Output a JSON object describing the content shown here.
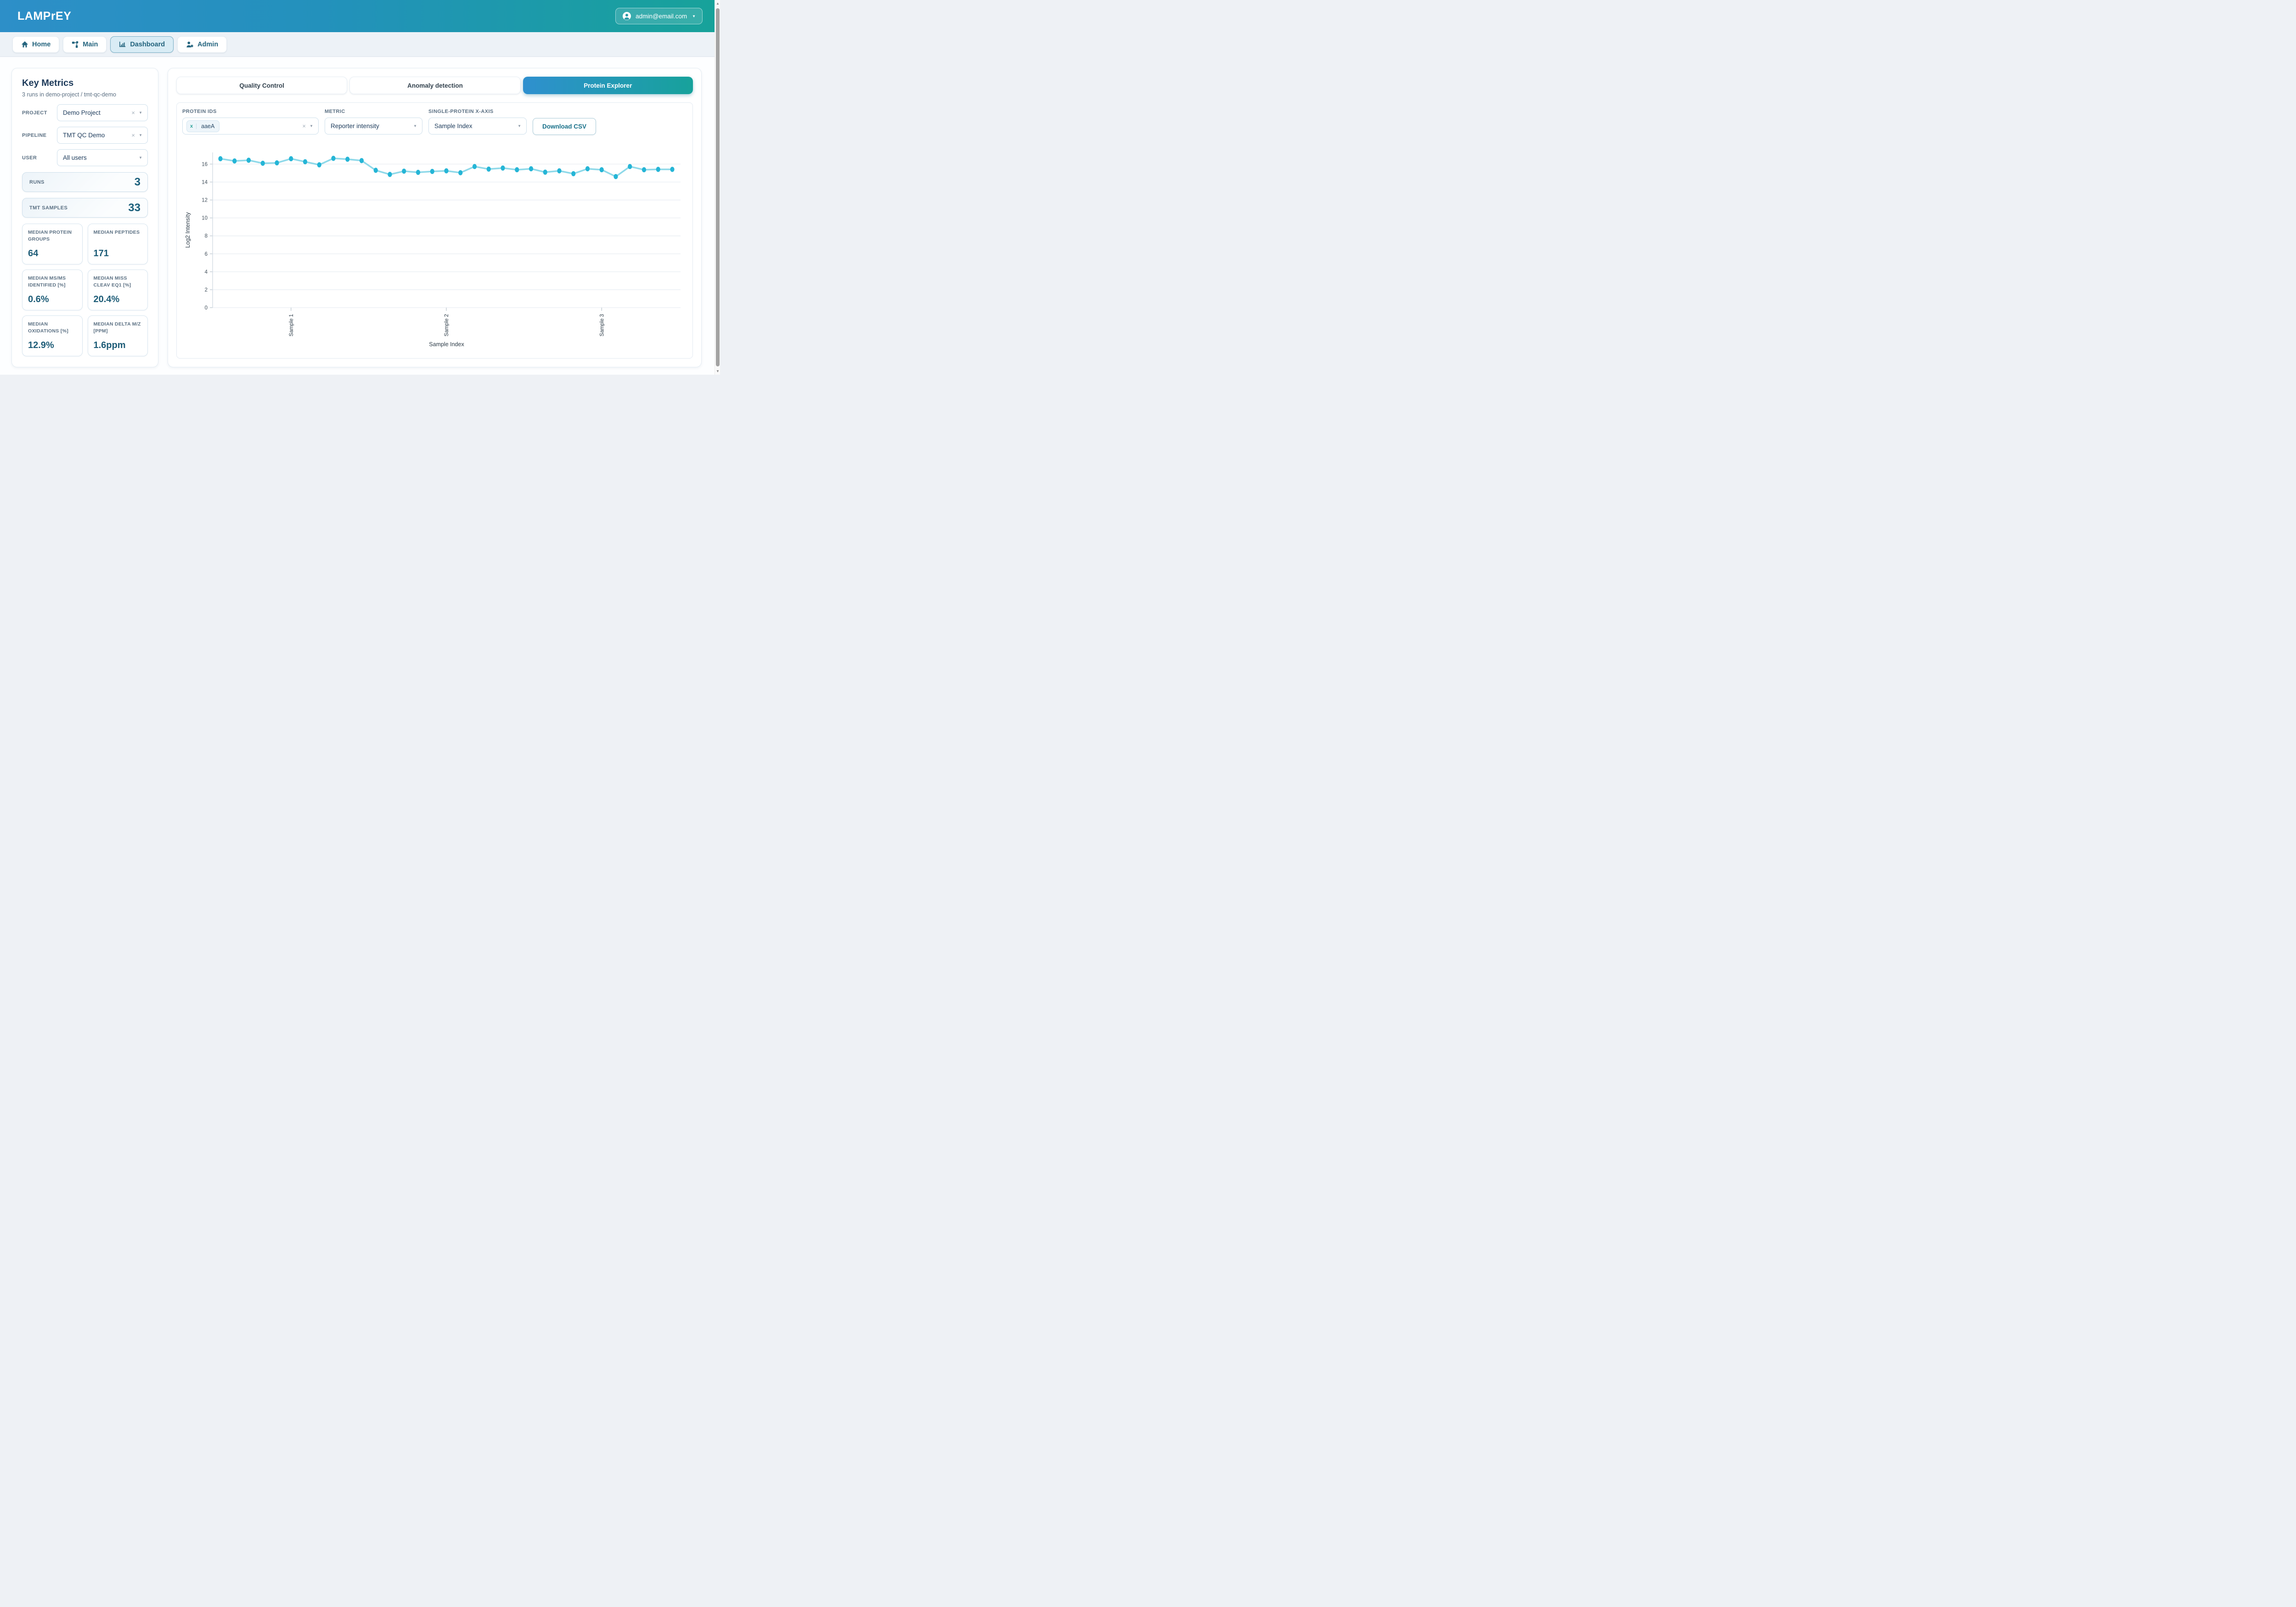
{
  "header": {
    "app_title": "LAMPrEY",
    "user_email": "admin@email.com",
    "caret": "▼"
  },
  "nav": {
    "items": [
      {
        "label": "Home",
        "active": false
      },
      {
        "label": "Main",
        "active": false
      },
      {
        "label": "Dashboard",
        "active": true
      },
      {
        "label": "Admin",
        "active": false
      }
    ]
  },
  "sidebar": {
    "title": "Key Metrics",
    "subtitle": "3 runs in demo-project / tmt-qc-demo",
    "filters": [
      {
        "label": "PROJECT",
        "value": "Demo Project",
        "clear": "×",
        "caret": "▼"
      },
      {
        "label": "PIPELINE",
        "value": "TMT QC Demo",
        "clear": "×",
        "caret": "▼"
      },
      {
        "label": "USER",
        "value": "All users",
        "clear": "",
        "caret": "▼"
      }
    ],
    "stats": [
      {
        "label": "RUNS",
        "value": "3"
      },
      {
        "label": "TMT SAMPLES",
        "value": "33"
      }
    ],
    "cards": [
      {
        "label": "MEDIAN PROTEIN GROUPS",
        "value": "64"
      },
      {
        "label": "MEDIAN PEPTIDES",
        "value": "171"
      },
      {
        "label": "MEDIAN MS/MS IDENTIFIED [%]",
        "value": "0.6%"
      },
      {
        "label": "MEDIAN MISS CLEAV EQ1 [%]",
        "value": "20.4%"
      },
      {
        "label": "MEDIAN OXIDATIONS [%]",
        "value": "12.9%"
      },
      {
        "label": "MEDIAN DELTA M/Z [PPM]",
        "value": "1.6ppm"
      }
    ]
  },
  "main": {
    "tabs": [
      {
        "label": "Quality Control",
        "active": false
      },
      {
        "label": "Anomaly detection",
        "active": false
      },
      {
        "label": "Protein Explorer",
        "active": true
      }
    ],
    "controls": {
      "protein_ids_label": "PROTEIN IDS",
      "protein_tag": "aaeA",
      "tag_remove": "x",
      "clear": "×",
      "caret": "▼",
      "metric_label": "METRIC",
      "metric_value": "Reporter intensity",
      "xaxis_label": "SINGLE-PROTEIN X-AXIS",
      "xaxis_value": "Sample Index",
      "download_label": "Download CSV"
    }
  },
  "chart_data": {
    "type": "line",
    "title": "",
    "xlabel": "Sample Index",
    "ylabel": "Log2 Intensity",
    "ylim": [
      0,
      17.3
    ],
    "yticks": [
      0,
      2,
      4,
      6,
      8,
      10,
      12,
      14,
      16
    ],
    "grid": true,
    "legend": false,
    "x": [
      1,
      2,
      3,
      4,
      5,
      6,
      7,
      8,
      9,
      10,
      11,
      12,
      13,
      14,
      15,
      16,
      17,
      18,
      19,
      20,
      21,
      22,
      23,
      24,
      25,
      26,
      27,
      28,
      29,
      30,
      31,
      32,
      33
    ],
    "series": [
      {
        "name": "aaeA",
        "values": [
          16.6,
          16.35,
          16.43,
          16.09,
          16.14,
          16.6,
          16.26,
          15.92,
          16.64,
          16.54,
          16.39,
          15.31,
          14.85,
          15.21,
          15.08,
          15.18,
          15.25,
          15.04,
          15.73,
          15.44,
          15.56,
          15.37,
          15.48,
          15.1,
          15.25,
          14.93,
          15.48,
          15.37,
          14.61,
          15.73,
          15.37,
          15.41,
          15.41
        ]
      }
    ],
    "xtick_labels": [
      {
        "index": 5,
        "label": "Sample 1"
      },
      {
        "index": 16,
        "label": "Sample 2"
      },
      {
        "index": 27,
        "label": "Sample 3"
      }
    ],
    "colors": {
      "marker": "#25b5d6",
      "line": "#8fd9e9",
      "grid": "#e9eef3",
      "axis": "#d5dde5",
      "tick_text": "#44525e",
      "title_text": "#2e3d49"
    }
  },
  "scrollbar": {
    "up": "▲",
    "down": "▼"
  }
}
